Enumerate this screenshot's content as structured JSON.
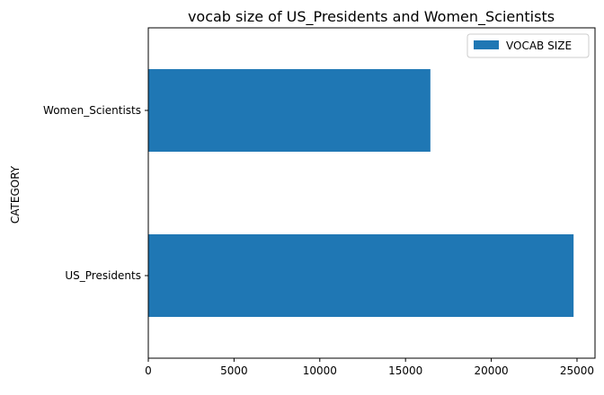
{
  "chart_data": {
    "type": "bar",
    "orientation": "horizontal",
    "title": "vocab size of US_Presidents and Women_Scientists",
    "xlabel": "",
    "ylabel": "CATEGORY",
    "categories": [
      "US_Presidents",
      "Women_Scientists"
    ],
    "series": [
      {
        "name": "VOCAB SIZE",
        "values": [
          24800,
          16450
        ],
        "color": "#1f77b4"
      }
    ],
    "xlim": [
      0,
      26050
    ],
    "xticks": [
      0,
      5000,
      10000,
      15000,
      20000,
      25000
    ],
    "xtick_labels": [
      "0",
      "5000",
      "10000",
      "15000",
      "20000",
      "25000"
    ],
    "grid": false,
    "legend": {
      "position": "top-right"
    }
  }
}
